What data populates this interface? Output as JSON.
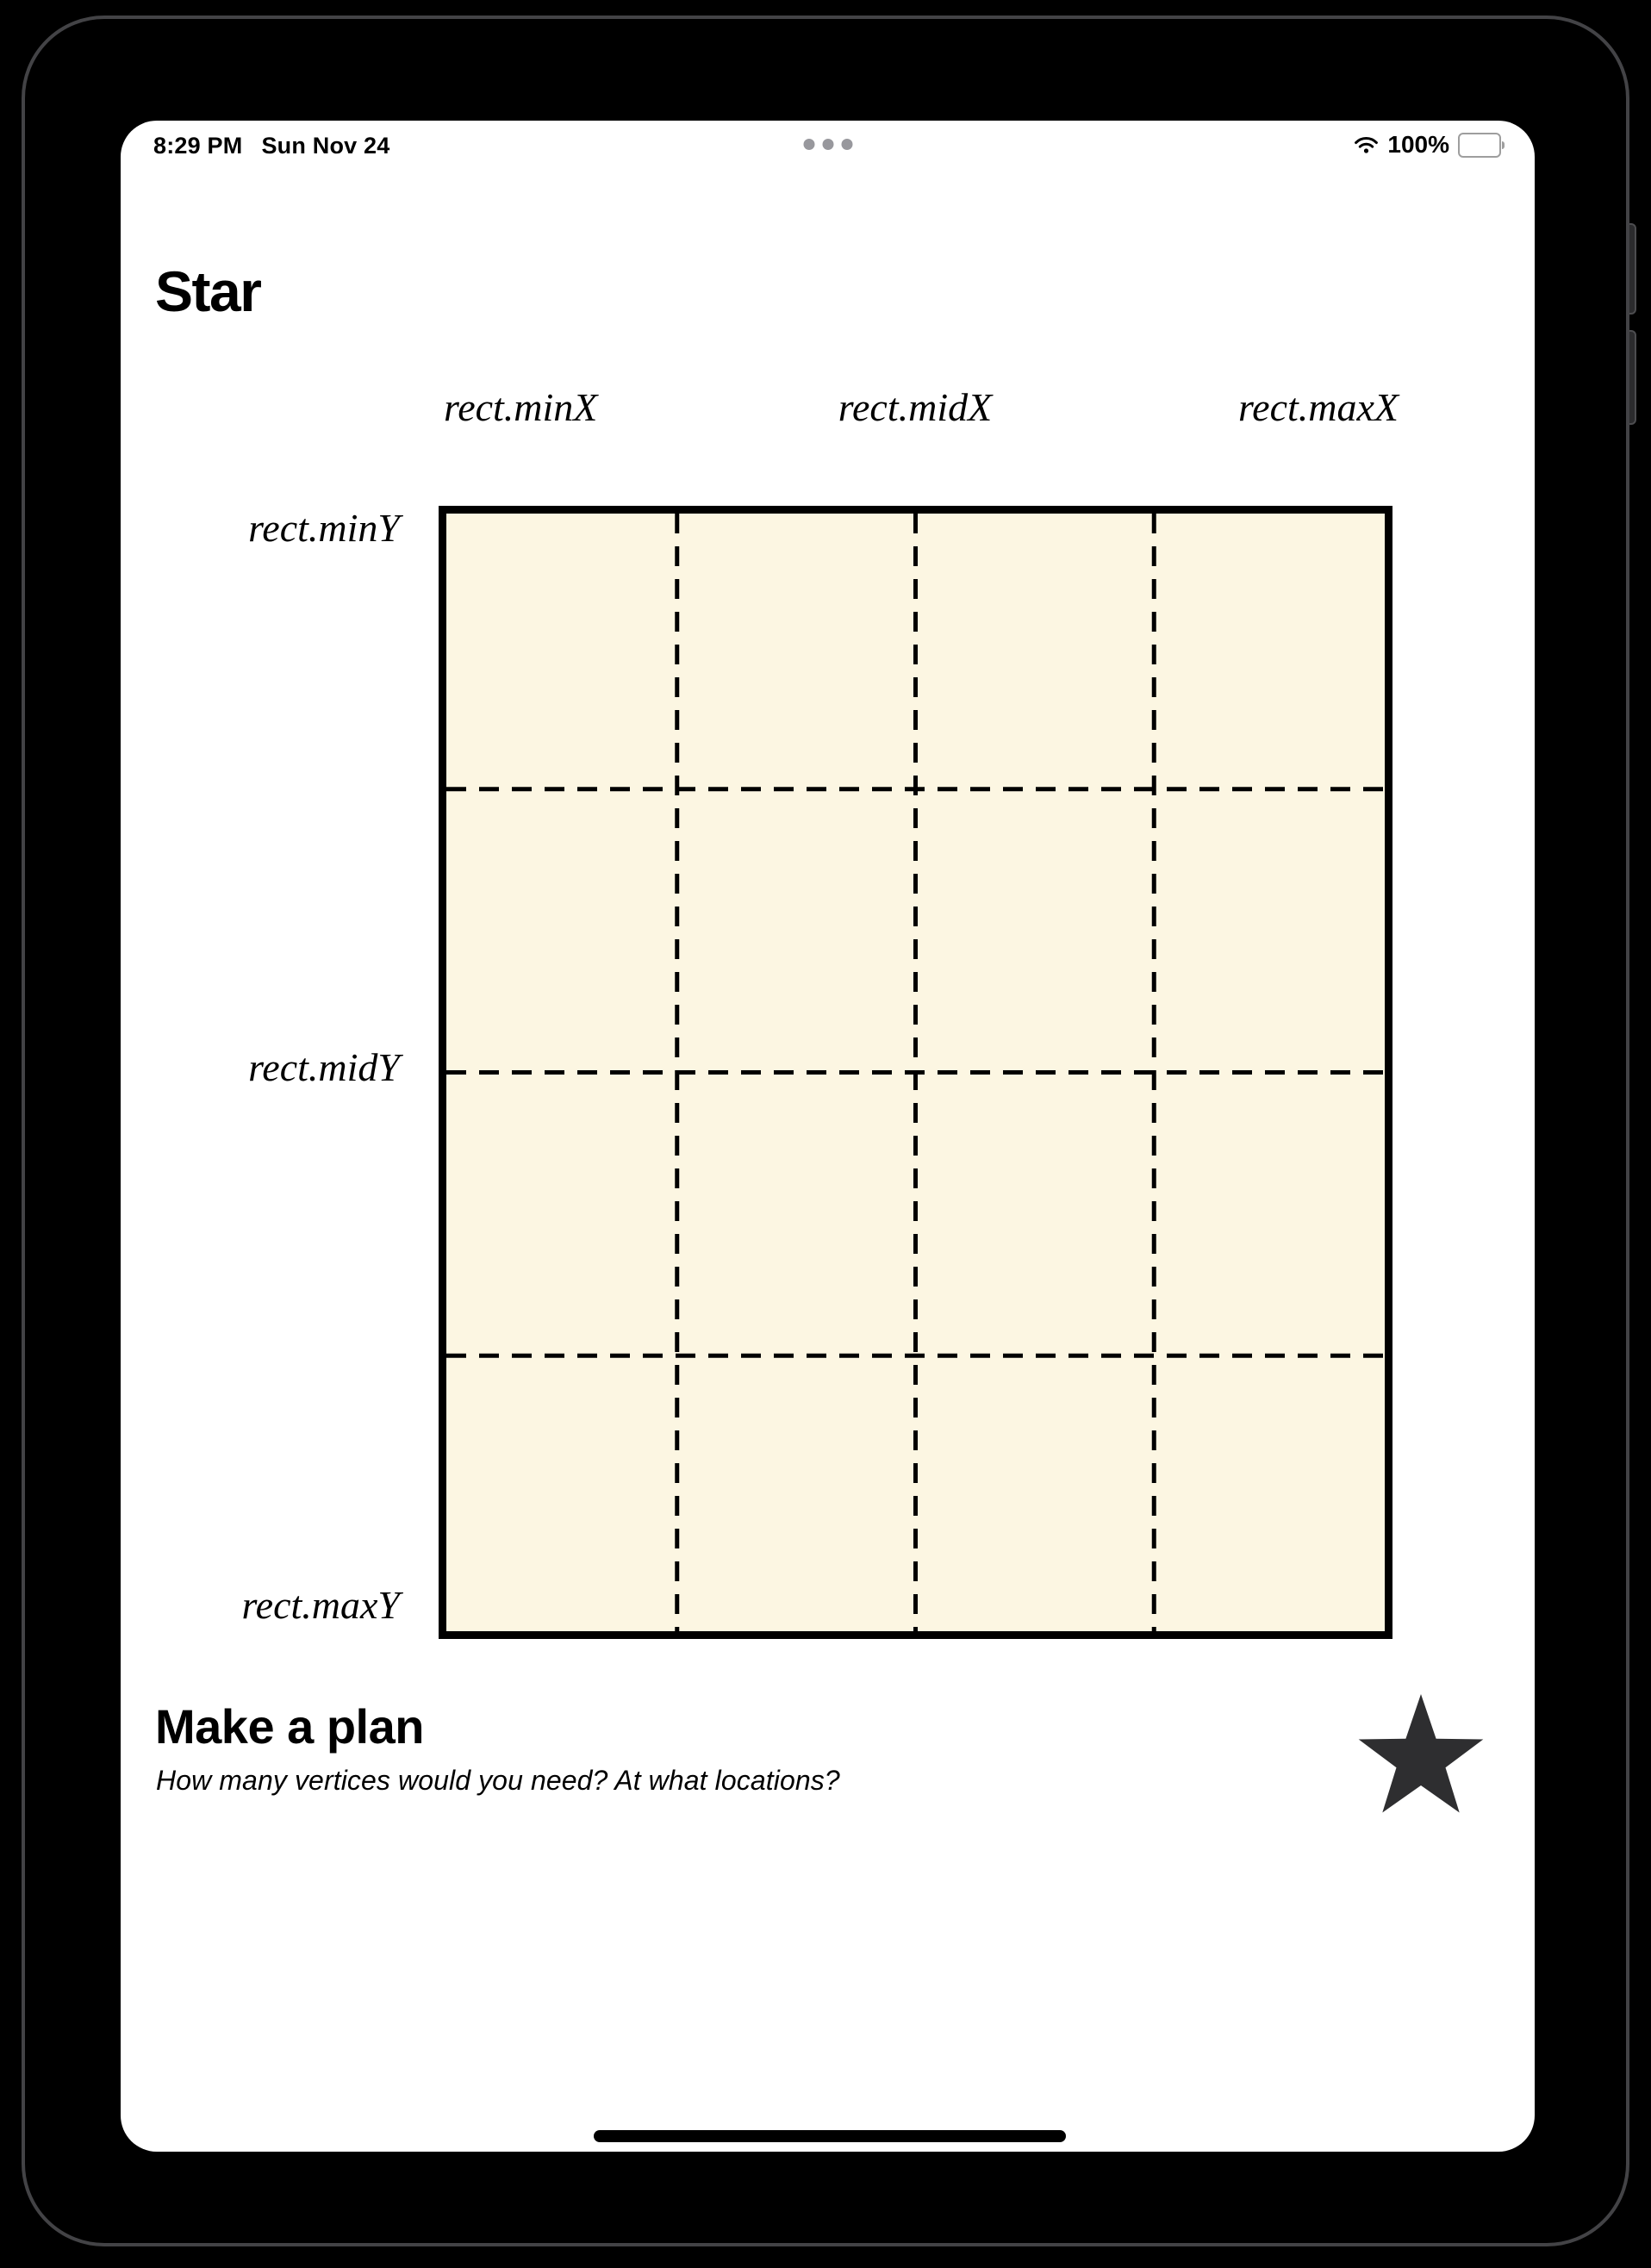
{
  "status_bar": {
    "time": "8:29 PM",
    "date": "Sun Nov 24",
    "battery_percent": "100%"
  },
  "page": {
    "title": "Star",
    "diagram": {
      "column_labels": [
        "rect.minX",
        "rect.midX",
        "rect.maxX"
      ],
      "row_labels": [
        "rect.minY",
        "rect.midY",
        "rect.maxY"
      ],
      "grid": {
        "rows": 4,
        "cols": 4,
        "fill_color": "#FCF6E2",
        "line_color": "#000000",
        "border_width": 9,
        "dash_width": 5,
        "dash_pattern": "23 15"
      }
    },
    "make_a_plan": {
      "heading": "Make a plan",
      "subtitle": "How many vertices would you need? At what locations?",
      "star_color": "#2E2E30"
    }
  }
}
